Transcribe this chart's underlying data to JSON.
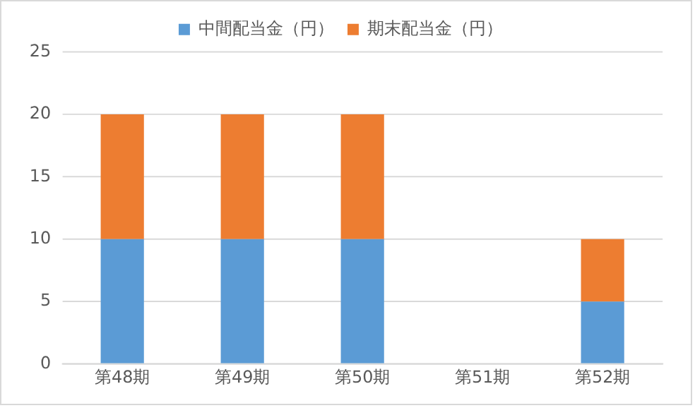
{
  "chart_data": {
    "type": "bar",
    "stacked": true,
    "categories": [
      "第48期",
      "第49期",
      "第50期",
      "第51期",
      "第52期"
    ],
    "series": [
      {
        "name": "中間配当金（円）",
        "color": "#5b9bd5",
        "values": [
          10,
          10,
          10,
          null,
          5
        ]
      },
      {
        "name": "期末配当金（円）",
        "color": "#ed7d31",
        "values": [
          10,
          10,
          10,
          null,
          5
        ]
      }
    ],
    "ylim": [
      0,
      25
    ],
    "yticks": [
      0,
      5,
      10,
      15,
      20,
      25
    ],
    "grid": "y",
    "legend": "top"
  }
}
